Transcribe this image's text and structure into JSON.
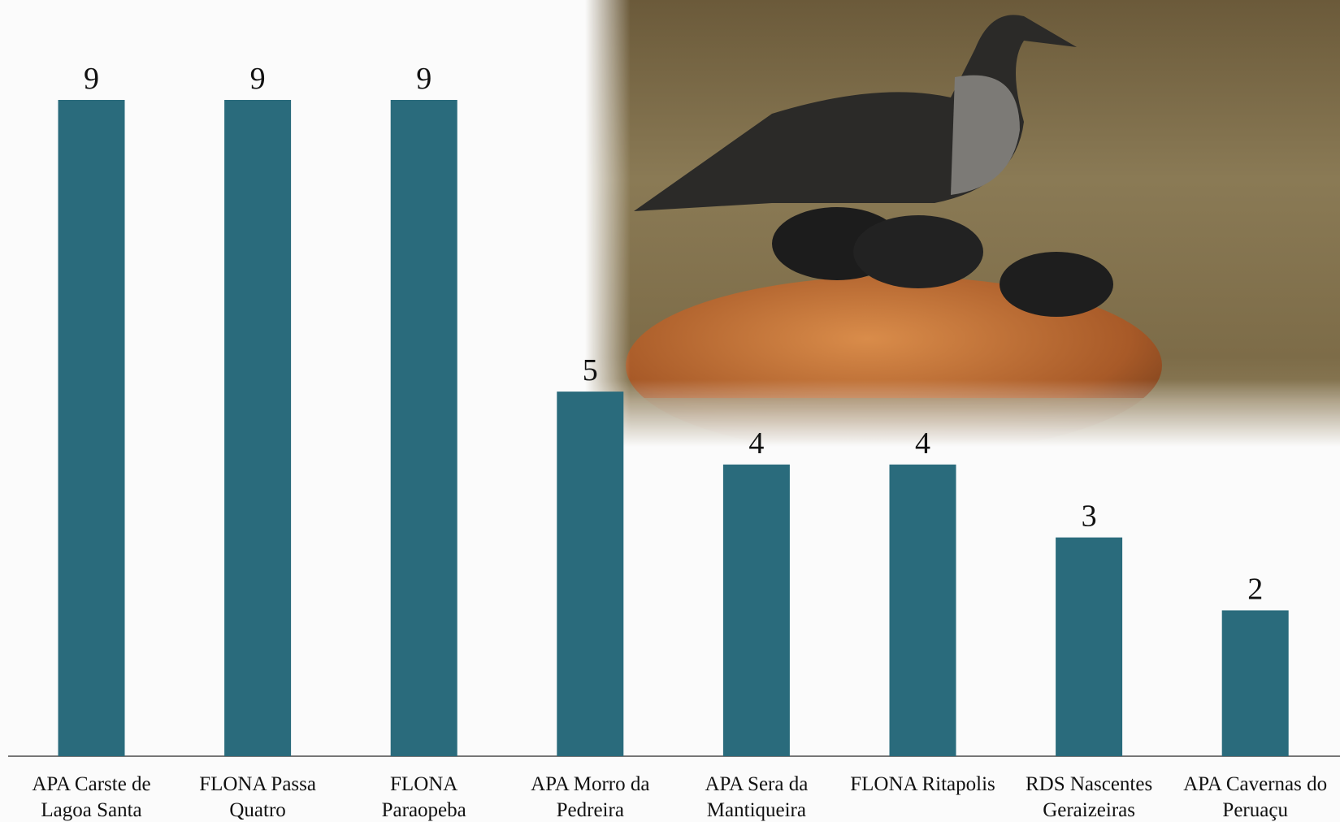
{
  "chart_data": {
    "type": "bar",
    "categories": [
      "APA Carste de Lagoa Santa",
      "FLONA Passa Quatro",
      "FLONA Paraopeba",
      "APA Morro da Pedreira",
      "APA Sera da Mantiqueira",
      "FLONA Ritapolis",
      "RDS Nascentes Geraizeiras",
      "APA Cavernas do Peruaçu"
    ],
    "values": [
      9,
      9,
      9,
      5,
      4,
      4,
      3,
      2
    ],
    "color": "#2a6b7c"
  }
}
